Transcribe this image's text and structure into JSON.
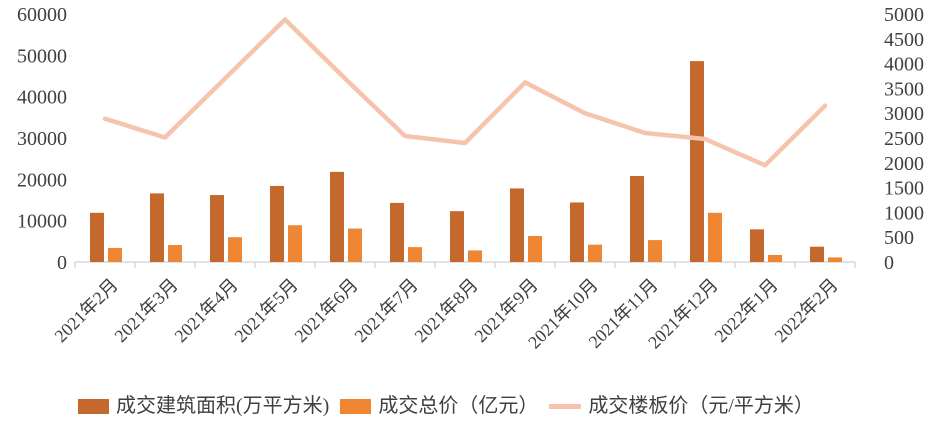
{
  "chart_data": {
    "type": "bar-line-combo",
    "title": "",
    "categories": [
      "2021年2月",
      "2021年3月",
      "2021年4月",
      "2021年5月",
      "2021年6月",
      "2021年7月",
      "2021年8月",
      "2021年9月",
      "2021年10月",
      "2021年11月",
      "2021年12月",
      "2022年1月",
      "2022年2月"
    ],
    "series": [
      {
        "name": "成交建筑面积(万平方米)",
        "kind": "bar",
        "axis": "left",
        "color": "#C4682C",
        "values": [
          11900,
          16600,
          16200,
          18400,
          21800,
          14300,
          12300,
          17800,
          14400,
          20800,
          48600,
          7900,
          3700
        ]
      },
      {
        "name": "成交总价（亿元）",
        "kind": "bar",
        "axis": "left",
        "color": "#EE8634",
        "values": [
          3400,
          4100,
          6000,
          8900,
          8100,
          3600,
          2800,
          6300,
          4200,
          5300,
          11900,
          1700,
          1100
        ]
      },
      {
        "name": "成交楼板价（元/平方米）",
        "kind": "line",
        "axis": "right",
        "color": "#F6C3AC",
        "values": [
          2890,
          2510,
          3700,
          4890,
          3700,
          2540,
          2400,
          3620,
          3000,
          2600,
          2480,
          1950,
          3150
        ]
      }
    ],
    "left_axis": {
      "min": 0,
      "max": 60000,
      "step": 10000
    },
    "right_axis": {
      "min": 0,
      "max": 5000,
      "step": 500
    },
    "grid": false,
    "legend_position": "bottom-left",
    "axis_color": "#D9D9D9",
    "text_color": "#3F3F3F",
    "background": "#FFFFFF"
  }
}
